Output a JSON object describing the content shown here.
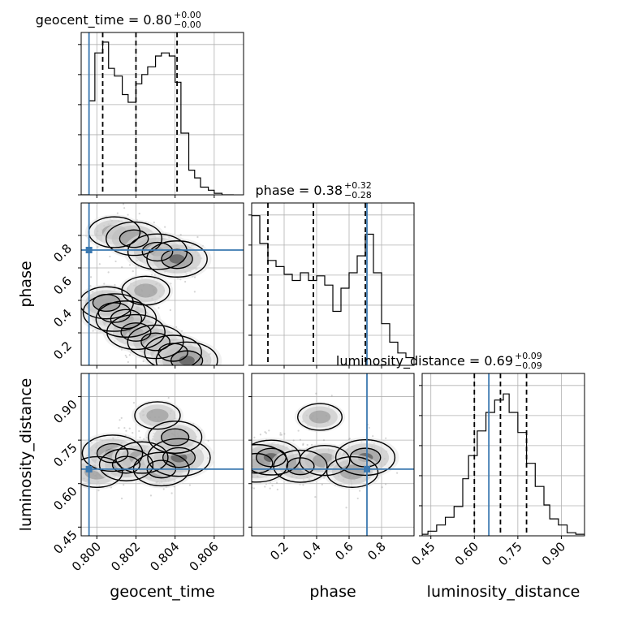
{
  "chart_data": {
    "type": "corner",
    "parameters": [
      "geocent_time",
      "phase",
      "luminosity_distance"
    ],
    "truth": {
      "geocent_time": 0.7996,
      "phase": 0.71,
      "luminosity_distance": 0.65
    },
    "colors": {
      "truth": "#3a78b0",
      "hist": "#000000",
      "grid": "#b0b0b0"
    },
    "grid": true,
    "titles": [
      {
        "label": "geocent_time = 0.80",
        "sup": "+0.00",
        "sub": "−0.00"
      },
      {
        "label": "phase = 0.38",
        "sup": "+0.32",
        "sub": "−0.28"
      },
      {
        "label": "luminosity_distance = 0.69",
        "sup": "+0.09",
        "sub": "−0.09"
      }
    ],
    "axes": {
      "geocent_time": {
        "label": "geocent_time",
        "range": [
          0.7992,
          0.8075
        ],
        "ticks": [
          "0.800",
          "0.802",
          "0.804",
          "0.806"
        ],
        "tick_values": [
          0.8,
          0.802,
          0.804,
          0.806
        ]
      },
      "phase": {
        "label": "phase",
        "range": [
          0.0,
          1.0
        ],
        "ticks": [
          "0.2",
          "0.4",
          "0.6",
          "0.8"
        ],
        "tick_values": [
          0.2,
          0.4,
          0.6,
          0.8
        ]
      },
      "luminosity_distance": {
        "label": "luminosity_distance",
        "range": [
          0.42,
          0.98
        ],
        "ticks": [
          "0.45",
          "0.60",
          "0.75",
          "0.90"
        ],
        "tick_values": [
          0.45,
          0.6,
          0.75,
          0.9
        ]
      }
    },
    "histograms": {
      "geocent_time": {
        "edges": [
          0.7992,
          0.7996,
          0.7999,
          0.8003,
          0.8006,
          0.8009,
          0.8013,
          0.8016,
          0.802,
          0.8023,
          0.8026,
          0.803,
          0.8033,
          0.8037,
          0.804,
          0.8043,
          0.8047,
          0.805,
          0.8053,
          0.8057,
          0.806,
          0.8064,
          0.8067,
          0.807
        ],
        "values": [
          0.0,
          0.61,
          0.92,
          0.99,
          0.82,
          0.77,
          0.65,
          0.6,
          0.72,
          0.78,
          0.83,
          0.9,
          0.92,
          0.9,
          0.73,
          0.4,
          0.16,
          0.11,
          0.05,
          0.03,
          0.01,
          0.0,
          0.0
        ],
        "quantiles": [
          0.8003,
          0.802,
          0.8041
        ]
      },
      "phase": {
        "edges": [
          0.0,
          0.05,
          0.1,
          0.15,
          0.2,
          0.25,
          0.3,
          0.35,
          0.4,
          0.45,
          0.5,
          0.55,
          0.6,
          0.65,
          0.7,
          0.75,
          0.8,
          0.85,
          0.9,
          0.95,
          1.0
        ],
        "values": [
          0.97,
          0.79,
          0.68,
          0.64,
          0.59,
          0.55,
          0.6,
          0.55,
          0.58,
          0.52,
          0.35,
          0.5,
          0.6,
          0.71,
          0.85,
          0.6,
          0.27,
          0.15,
          0.08,
          0.05
        ],
        "quantiles": [
          0.1,
          0.38,
          0.7
        ]
      },
      "luminosity_distance": {
        "edges": [
          0.42,
          0.44,
          0.47,
          0.5,
          0.53,
          0.56,
          0.58,
          0.61,
          0.64,
          0.67,
          0.7,
          0.72,
          0.75,
          0.78,
          0.81,
          0.84,
          0.86,
          0.89,
          0.92,
          0.95,
          0.98
        ],
        "values": [
          0.01,
          0.03,
          0.07,
          0.12,
          0.19,
          0.37,
          0.52,
          0.68,
          0.8,
          0.88,
          0.92,
          0.8,
          0.67,
          0.47,
          0.32,
          0.2,
          0.11,
          0.07,
          0.02,
          0.01
        ],
        "quantiles": [
          0.6,
          0.69,
          0.78
        ]
      }
    },
    "density_2d": {
      "phase_vs_geocent_time": {
        "blobs": [
          {
            "x": 0.8009,
            "y": 0.325,
            "w": 1.0
          },
          {
            "x": 0.8015,
            "y": 0.285,
            "w": 0.9
          },
          {
            "x": 0.802,
            "y": 0.205,
            "w": 0.8
          },
          {
            "x": 0.803,
            "y": 0.145,
            "w": 0.7
          },
          {
            "x": 0.8039,
            "y": 0.08,
            "w": 0.75
          },
          {
            "x": 0.8046,
            "y": 0.03,
            "w": 0.95
          },
          {
            "x": 0.8005,
            "y": 0.385,
            "w": 0.6
          },
          {
            "x": 0.8025,
            "y": 0.46,
            "w": 0.35
          },
          {
            "x": 0.8009,
            "y": 0.82,
            "w": 0.5
          },
          {
            "x": 0.8019,
            "y": 0.78,
            "w": 0.7
          },
          {
            "x": 0.8031,
            "y": 0.7,
            "w": 0.85
          },
          {
            "x": 0.8041,
            "y": 0.655,
            "w": 0.9
          }
        ]
      },
      "luminosity_distance_vs_geocent_time": {
        "blobs": [
          {
            "x": 0.8,
            "y": 0.64,
            "w": 0.5
          },
          {
            "x": 0.8008,
            "y": 0.705,
            "w": 0.9
          },
          {
            "x": 0.8015,
            "y": 0.665,
            "w": 0.6
          },
          {
            "x": 0.8023,
            "y": 0.69,
            "w": 0.55
          },
          {
            "x": 0.8033,
            "y": 0.65,
            "w": 0.7
          },
          {
            "x": 0.8042,
            "y": 0.69,
            "w": 1.0
          },
          {
            "x": 0.804,
            "y": 0.76,
            "w": 0.6
          },
          {
            "x": 0.8031,
            "y": 0.835,
            "w": 0.25
          }
        ]
      },
      "luminosity_distance_vs_phase": {
        "blobs": [
          {
            "x": 0.03,
            "y": 0.67,
            "w": 1.0
          },
          {
            "x": 0.12,
            "y": 0.69,
            "w": 0.8
          },
          {
            "x": 0.3,
            "y": 0.66,
            "w": 0.6
          },
          {
            "x": 0.45,
            "y": 0.68,
            "w": 0.45
          },
          {
            "x": 0.7,
            "y": 0.69,
            "w": 0.85
          },
          {
            "x": 0.62,
            "y": 0.64,
            "w": 0.5
          },
          {
            "x": 0.42,
            "y": 0.83,
            "w": 0.2
          }
        ]
      }
    }
  }
}
